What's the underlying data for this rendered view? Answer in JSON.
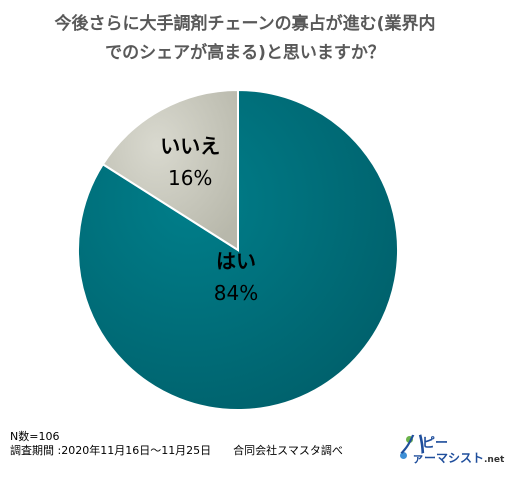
{
  "chart_data": {
    "type": "pie",
    "title_lines": [
      "今後さらに大手調剤チェーンの寡占が進む(業界内",
      "でのシェアが高まる)と思いますか？"
    ],
    "slices": [
      {
        "label": "はい",
        "value": 84,
        "percent_label": "84%",
        "color": "#007e8a"
      },
      {
        "label": "いいえ",
        "value": 16,
        "percent_label": "16%",
        "color": "#d9d9cf"
      }
    ],
    "start": "top",
    "direction": "clockwise",
    "legend": "none"
  },
  "footer": {
    "n": "N数=106",
    "period": "調査期間 :2020年11月16日～11月25日　　合同会社スマスタ調べ"
  },
  "logo": {
    "top_text": "ピー",
    "bottom_text": "ァーマシスト",
    "net_text": ".net",
    "mark_text": "ハ"
  },
  "colors": {
    "title": "#595959",
    "slice_yes_dark": "#00606b",
    "slice_no_dark": "#b8b8ab"
  }
}
